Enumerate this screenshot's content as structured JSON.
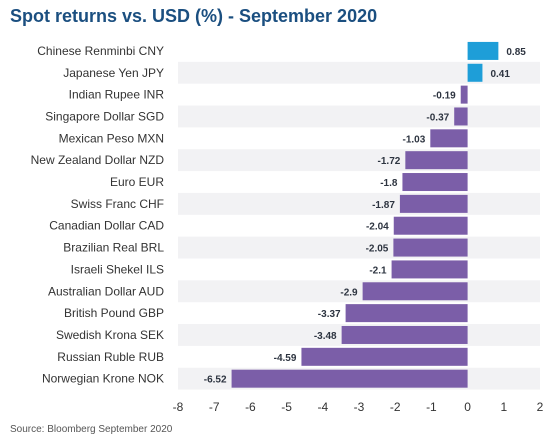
{
  "colors": {
    "positive": "#1e9ed8",
    "negative": "#7b5ea8",
    "band": "#f2f2f4",
    "title": "#1b4f80"
  },
  "chart_data": {
    "type": "bar",
    "orientation": "horizontal",
    "title": "Spot returns vs. USD (%) - September 2020",
    "source": "Source: Bloomberg September 2020",
    "categories": [
      "Chinese Renminbi CNY",
      "Japanese Yen JPY",
      "Indian Rupee INR",
      "Singapore Dollar SGD",
      "Mexican Peso MXN",
      "New Zealand Dollar NZD",
      "Euro EUR",
      "Swiss Franc CHF",
      "Canadian Dollar CAD",
      "Brazilian Real BRL",
      "Israeli Shekel ILS",
      "Australian Dollar AUD",
      "British Pound GBP",
      "Swedish Krona SEK",
      "Russian Ruble RUB",
      "Norwegian Krone NOK"
    ],
    "values": [
      0.85,
      0.41,
      -0.19,
      -0.37,
      -1.03,
      -1.72,
      -1.8,
      -1.87,
      -2.04,
      -2.05,
      -2.1,
      -2.9,
      -3.37,
      -3.48,
      -4.59,
      -6.52
    ],
    "value_labels": [
      "0.85",
      "0.41",
      "-0.19",
      "-0.37",
      "-1.03",
      "-1.72",
      "-1.8",
      "-1.87",
      "-2.04",
      "-2.05",
      "-2.1",
      "-2.9",
      "-3.37",
      "-3.48",
      "-4.59",
      "-6.52"
    ],
    "xlim": [
      -8,
      2
    ],
    "xticks": [
      -8,
      -7,
      -6,
      -5,
      -4,
      -3,
      -2,
      -1,
      0,
      1,
      2
    ],
    "xtick_labels": [
      "-8",
      "-7",
      "-6",
      "-5",
      "-4",
      "-3",
      "-2",
      "-1",
      "0",
      "1",
      "2"
    ],
    "grid": false,
    "alternating_row_bands": true
  }
}
